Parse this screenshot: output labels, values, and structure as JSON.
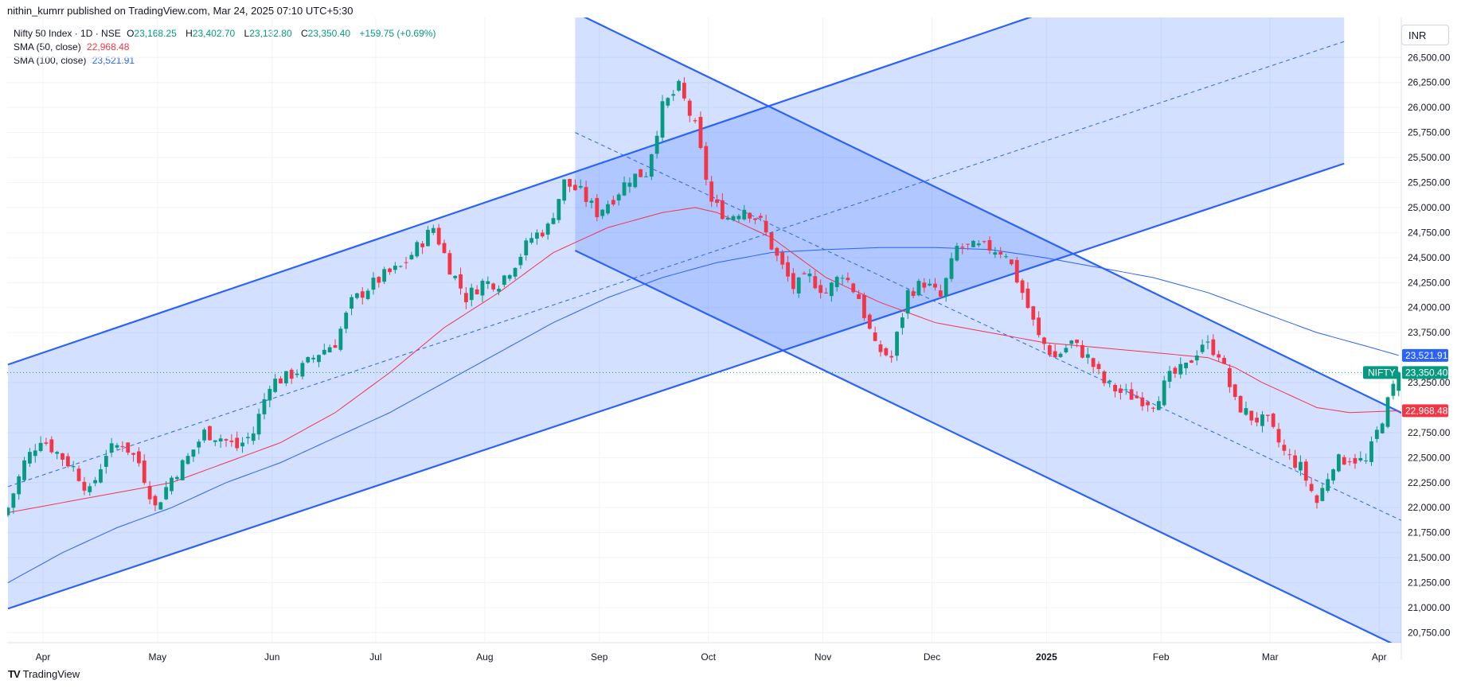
{
  "header": {
    "publish_line": "nithin_kumrr published on TradingView.com, Mar 24, 2025 07:10 UTC+5:30"
  },
  "legend": {
    "symbol": "Nifty 50 Index · 1D · NSE",
    "ohlc": {
      "o_label": "O",
      "o": "23,168.25",
      "h_label": "H",
      "h": "23,402.70",
      "l_label": "L",
      "l": "23,132.80",
      "c_label": "C",
      "c": "23,350.40",
      "change": "+159.75 (+0.69%)"
    },
    "sma50_label": "SMA (50, close)",
    "sma50_value": "22,968.48",
    "sma100_label": "SMA (100, close)",
    "sma100_value": "23,521.91"
  },
  "currency": "INR",
  "footer": {
    "logo_text": "TradingView",
    "logo_mark": "TV"
  },
  "colors": {
    "up": "#089981",
    "down": "#f23645",
    "sma50": "#f23645",
    "sma100": "#2962ff",
    "channel_line": "#2962ff",
    "channel_fill": "#2962ff"
  },
  "chart_data": {
    "type": "candlestick",
    "symbol": "NIFTY",
    "y_axis": {
      "min": 20650,
      "max": 26900,
      "ticks": [
        "26,500.00",
        "26,250.00",
        "26,000.00",
        "25,750.00",
        "25,500.00",
        "25,250.00",
        "25,000.00",
        "24,750.00",
        "24,500.00",
        "24,250.00",
        "24,000.00",
        "23,750.00",
        "23,250.00",
        "22,750.00",
        "22,500.00",
        "22,250.00",
        "22,000.00",
        "21,750.00",
        "21,500.00",
        "21,250.00",
        "21,000.00",
        "20,750.00"
      ],
      "tick_values": [
        26500,
        26250,
        26000,
        25750,
        25500,
        25250,
        25000,
        24750,
        24500,
        24250,
        24000,
        23750,
        23250,
        22750,
        22500,
        22250,
        22000,
        21750,
        21500,
        21250,
        21000,
        20750
      ]
    },
    "x_axis": {
      "labels": [
        "Apr",
        "May",
        "Jun",
        "Jul",
        "Aug",
        "Sep",
        "Oct",
        "Nov",
        "Dec",
        "2025",
        "Feb",
        "Mar",
        "Apr"
      ],
      "bold_labels": [
        "2025"
      ],
      "label_positions": [
        0,
        21,
        42,
        61,
        81,
        102,
        122,
        143,
        163,
        184,
        205,
        225,
        245
      ]
    },
    "price_labels": [
      {
        "name": "SMA 100",
        "value": 23521.91,
        "text": "23,521.91",
        "color": "#2962ff"
      },
      {
        "name": "NIFTY",
        "value": 23350.4,
        "text": "23,350.40",
        "color": "#089981",
        "tag": "NIFTY"
      },
      {
        "name": "SMA 50",
        "value": 22968.48,
        "text": "22,968.48",
        "color": "#f23645"
      }
    ],
    "last_close": 23350.4,
    "close_anchors": [
      [
        0,
        22000
      ],
      [
        3,
        22450
      ],
      [
        6,
        22700
      ],
      [
        9,
        22550
      ],
      [
        12,
        22400
      ],
      [
        15,
        22150
      ],
      [
        18,
        22550
      ],
      [
        21,
        22650
      ],
      [
        24,
        22450
      ],
      [
        27,
        22000
      ],
      [
        30,
        22300
      ],
      [
        33,
        22500
      ],
      [
        36,
        22750
      ],
      [
        39,
        22700
      ],
      [
        42,
        22600
      ],
      [
        45,
        22750
      ],
      [
        48,
        23250
      ],
      [
        51,
        23300
      ],
      [
        54,
        23400
      ],
      [
        57,
        23550
      ],
      [
        60,
        23650
      ],
      [
        63,
        24050
      ],
      [
        66,
        24200
      ],
      [
        69,
        24320
      ],
      [
        72,
        24400
      ],
      [
        75,
        24600
      ],
      [
        78,
        24800
      ],
      [
        81,
        24400
      ],
      [
        84,
        24100
      ],
      [
        87,
        24250
      ],
      [
        90,
        24250
      ],
      [
        93,
        24450
      ],
      [
        96,
        24700
      ],
      [
        99,
        24800
      ],
      [
        102,
        25250
      ],
      [
        105,
        25150
      ],
      [
        108,
        24950
      ],
      [
        111,
        25100
      ],
      [
        114,
        25300
      ],
      [
        117,
        25350
      ],
      [
        120,
        26000
      ],
      [
        123,
        26200
      ],
      [
        126,
        25800
      ],
      [
        129,
        25050
      ],
      [
        132,
        24900
      ],
      [
        135,
        25000
      ],
      [
        138,
        24850
      ],
      [
        141,
        24500
      ],
      [
        144,
        24200
      ],
      [
        147,
        24300
      ],
      [
        150,
        24150
      ],
      [
        153,
        24350
      ],
      [
        156,
        24100
      ],
      [
        159,
        23600
      ],
      [
        162,
        23500
      ],
      [
        165,
        24150
      ],
      [
        168,
        24250
      ],
      [
        171,
        24100
      ],
      [
        174,
        24600
      ],
      [
        177,
        24600
      ],
      [
        180,
        24600
      ],
      [
        183,
        24550
      ],
      [
        186,
        24150
      ],
      [
        189,
        23700
      ],
      [
        192,
        23500
      ],
      [
        195,
        23650
      ],
      [
        198,
        23500
      ],
      [
        201,
        23250
      ],
      [
        204,
        23150
      ],
      [
        207,
        23100
      ],
      [
        210,
        23050
      ],
      [
        213,
        23300
      ],
      [
        216,
        23400
      ],
      [
        219,
        23650
      ],
      [
        222,
        23550
      ],
      [
        225,
        23050
      ],
      [
        228,
        22900
      ],
      [
        231,
        22850
      ],
      [
        234,
        22550
      ],
      [
        237,
        22400
      ],
      [
        240,
        22050
      ],
      [
        243,
        22450
      ],
      [
        246,
        22500
      ],
      [
        249,
        22450
      ],
      [
        252,
        22900
      ],
      [
        255,
        23350
      ]
    ],
    "sma50_anchors": [
      [
        0,
        21950
      ],
      [
        10,
        22050
      ],
      [
        20,
        22150
      ],
      [
        30,
        22250
      ],
      [
        40,
        22450
      ],
      [
        50,
        22650
      ],
      [
        60,
        22950
      ],
      [
        70,
        23350
      ],
      [
        80,
        23800
      ],
      [
        90,
        24150
      ],
      [
        100,
        24550
      ],
      [
        110,
        24800
      ],
      [
        120,
        24950
      ],
      [
        126,
        25000
      ],
      [
        130,
        24950
      ],
      [
        140,
        24700
      ],
      [
        150,
        24300
      ],
      [
        160,
        24050
      ],
      [
        170,
        23850
      ],
      [
        180,
        23750
      ],
      [
        190,
        23650
      ],
      [
        200,
        23600
      ],
      [
        210,
        23550
      ],
      [
        220,
        23500
      ],
      [
        225,
        23400
      ],
      [
        230,
        23250
      ],
      [
        240,
        23000
      ],
      [
        246,
        22950
      ],
      [
        255,
        22968
      ]
    ],
    "sma100_anchors": [
      [
        0,
        21250
      ],
      [
        10,
        21550
      ],
      [
        20,
        21800
      ],
      [
        30,
        22000
      ],
      [
        40,
        22250
      ],
      [
        50,
        22450
      ],
      [
        60,
        22700
      ],
      [
        70,
        22950
      ],
      [
        80,
        23250
      ],
      [
        90,
        23550
      ],
      [
        100,
        23850
      ],
      [
        110,
        24100
      ],
      [
        120,
        24300
      ],
      [
        130,
        24450
      ],
      [
        140,
        24550
      ],
      [
        150,
        24580
      ],
      [
        160,
        24600
      ],
      [
        170,
        24600
      ],
      [
        180,
        24580
      ],
      [
        190,
        24500
      ],
      [
        200,
        24400
      ],
      [
        210,
        24300
      ],
      [
        220,
        24150
      ],
      [
        230,
        23950
      ],
      [
        240,
        23750
      ],
      [
        250,
        23600
      ],
      [
        255,
        23522
      ]
    ],
    "ascending_channel": {
      "start": [
        0,
        23430
      ],
      "end": [
        190,
        26950
      ],
      "lower_start": [
        0,
        20990
      ],
      "lower_end": [
        245,
        25440
      ],
      "mid_start": [
        0,
        22210
      ],
      "mid_end": [
        245,
        26660
      ],
      "fill_end_index": 245
    },
    "descending_channel": {
      "upper_start": [
        104,
        26950
      ],
      "upper_end": [
        263,
        22750
      ],
      "lower_start": [
        104,
        24570
      ],
      "lower_end": [
        263,
        20400
      ],
      "mid_start": [
        104,
        25750
      ],
      "mid_end": [
        263,
        21680
      ]
    }
  }
}
